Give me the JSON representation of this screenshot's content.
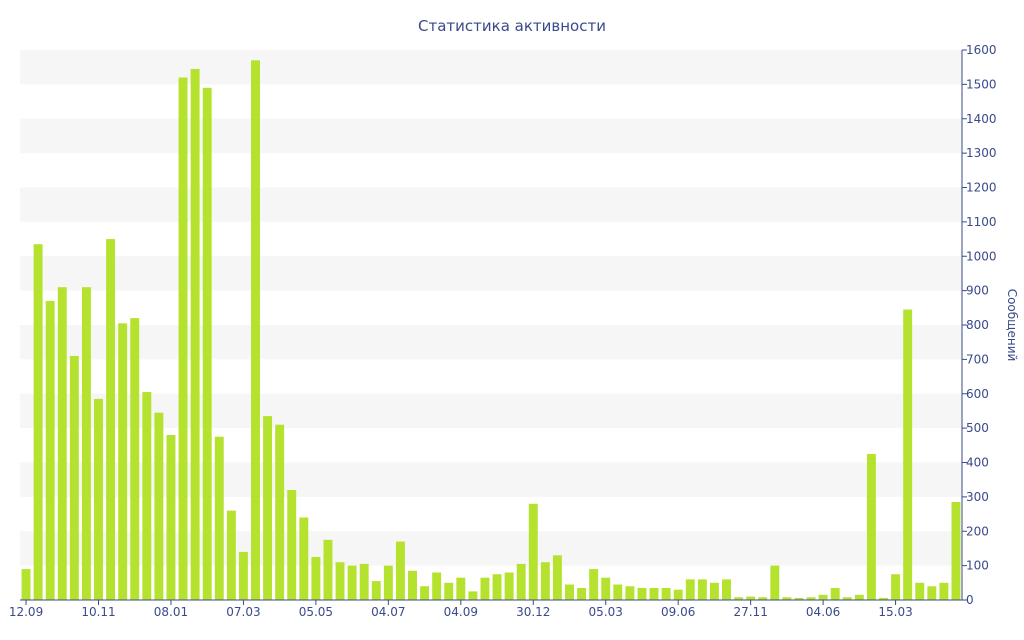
{
  "chart_data": {
    "type": "bar",
    "title": "Статистика активности",
    "xlabel": "",
    "ylabel": "Сообщений",
    "y_axis_side": "right",
    "ylim": [
      0,
      1600
    ],
    "y_ticks": [
      0,
      100,
      200,
      300,
      400,
      500,
      600,
      700,
      800,
      900,
      1000,
      1100,
      1200,
      1300,
      1400,
      1500,
      1600
    ],
    "x_tick_labels": [
      "12.09",
      "10.11",
      "08.01",
      "07.03",
      "05.05",
      "04.07",
      "04.09",
      "30.12",
      "05.03",
      "09.06",
      "27.11",
      "04.06",
      "15.03"
    ],
    "x_tick_bar_index": [
      0,
      6,
      12,
      18,
      24,
      30,
      36,
      42,
      48,
      54,
      60,
      66,
      72
    ],
    "bar_color": "#b5e22f",
    "stripe_color": "#f6f6f6",
    "axis_color": "#3a4a8a",
    "values": [
      90,
      1035,
      870,
      910,
      710,
      910,
      585,
      1050,
      805,
      820,
      605,
      545,
      480,
      1520,
      1545,
      1490,
      475,
      260,
      140,
      1570,
      535,
      510,
      320,
      240,
      125,
      175,
      110,
      100,
      105,
      55,
      100,
      170,
      85,
      40,
      80,
      50,
      65,
      25,
      65,
      75,
      80,
      105,
      280,
      110,
      130,
      45,
      35,
      90,
      65,
      45,
      40,
      35,
      35,
      35,
      30,
      60,
      60,
      50,
      60,
      8,
      10,
      8,
      100,
      8,
      6,
      8,
      15,
      35,
      8,
      15,
      425,
      6,
      75,
      845,
      50,
      40,
      50,
      285
    ]
  }
}
